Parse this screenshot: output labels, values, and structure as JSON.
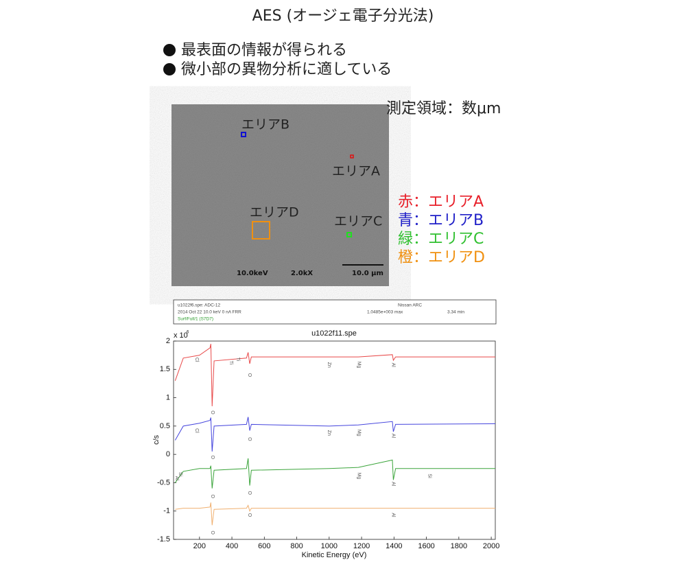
{
  "title": "AES (オージェ電子分光法)",
  "bullets": [
    "最表面の情報が得られる",
    "微小部の異物分析に適している"
  ],
  "sem_image": {
    "areas": [
      "エリアB",
      "エリアA",
      "エリアD",
      "エリアC"
    ],
    "footer": [
      "10.0keV",
      "2.0kX",
      "10.0 μm"
    ]
  },
  "measure_note": "測定領域：数μm",
  "area_legend": [
    {
      "text": "赤：エリアA",
      "color": "#e8202a"
    },
    {
      "text": "青：エリアB",
      "color": "#2020c8"
    },
    {
      "text": "緑：エリアC",
      "color": "#30c030"
    },
    {
      "text": "橙：エリアD",
      "color": "#f09010"
    }
  ],
  "info_box": {
    "file": "u1022f6.spe: ADC-12",
    "org": "Nissan ARC",
    "conditions": "2014 Oct 22  10.0 keV  0 nA  FRR",
    "max": "1.0485e+003 max",
    "time": "3.34 min",
    "region": "Surf/Full/1 (S7D7)"
  },
  "chart_data": {
    "type": "line",
    "title": "u1022f11.spe",
    "x_label": "Kinetic Energy (eV)",
    "y_label": "c/s",
    "y_multiplier": {
      "base": "x 10",
      "exponent": "6"
    },
    "x": [
      50,
      100,
      200,
      265,
      270,
      278,
      290,
      490,
      500,
      510,
      520,
      1000,
      1180,
      1390,
      1396,
      1410,
      2025
    ],
    "series": [
      {
        "name": "エリアA",
        "color": "#e84848",
        "values": [
          1.3,
          1.7,
          1.75,
          1.88,
          1.95,
          0.85,
          1.65,
          1.7,
          1.8,
          1.6,
          1.72,
          1.72,
          1.72,
          1.76,
          1.66,
          1.72,
          1.72
        ]
      },
      {
        "name": "エリアB",
        "color": "#4444dd",
        "values": [
          0.25,
          0.5,
          0.55,
          0.6,
          0.65,
          0.05,
          0.5,
          0.53,
          0.66,
          0.42,
          0.53,
          0.5,
          0.52,
          0.58,
          0.4,
          0.53,
          0.54
        ]
      },
      {
        "name": "エリアC",
        "color": "#3aa43a",
        "values": [
          -0.5,
          -0.3,
          -0.25,
          -0.25,
          -0.2,
          -0.6,
          -0.28,
          -0.25,
          -0.07,
          -0.55,
          -0.28,
          -0.25,
          -0.23,
          -0.1,
          -0.45,
          -0.25,
          -0.25
        ]
      },
      {
        "name": "エリアD",
        "color": "#f0b070",
        "values": [
          -0.97,
          -0.95,
          -0.95,
          -0.93,
          -0.85,
          -1.25,
          -0.97,
          -0.95,
          -0.9,
          -1.0,
          -0.95,
          -0.95,
          -0.95,
          -0.95,
          -0.95,
          -0.95,
          -0.95
        ]
      }
    ],
    "annotations": [
      {
        "text": "Cl",
        "x": 183,
        "y": 1.67
      },
      {
        "text": "Ti",
        "x": 395,
        "y": 1.62
      },
      {
        "text": "Ti",
        "x": 437,
        "y": 1.68
      },
      {
        "text": "O",
        "x": 280,
        "y": 0.74
      },
      {
        "text": "O",
        "x": 510,
        "y": 1.4
      },
      {
        "text": "Zn",
        "x": 1000,
        "y": 1.58
      },
      {
        "text": "Mg",
        "x": 1185,
        "y": 1.58
      },
      {
        "text": "Al",
        "x": 1395,
        "y": 1.58
      },
      {
        "text": "Cl",
        "x": 183,
        "y": 0.42
      },
      {
        "text": "O",
        "x": 280,
        "y": -0.05
      },
      {
        "text": "O",
        "x": 510,
        "y": 0.27
      },
      {
        "text": "Zn",
        "x": 1000,
        "y": 0.38
      },
      {
        "text": "Mg",
        "x": 1185,
        "y": 0.38
      },
      {
        "text": "Al",
        "x": 1395,
        "y": 0.33
      },
      {
        "text": "Al",
        "x": 60,
        "y": -0.42
      },
      {
        "text": "Si",
        "x": 82,
        "y": -0.35
      },
      {
        "text": "O",
        "x": 280,
        "y": -0.74
      },
      {
        "text": "O",
        "x": 510,
        "y": -0.68
      },
      {
        "text": "Mg",
        "x": 1185,
        "y": -0.38
      },
      {
        "text": "Al",
        "x": 1395,
        "y": -0.52
      },
      {
        "text": "Si",
        "x": 1620,
        "y": -0.38
      },
      {
        "text": "O",
        "x": 280,
        "y": -1.38
      },
      {
        "text": "O",
        "x": 510,
        "y": -1.07
      },
      {
        "text": "Al",
        "x": 1395,
        "y": -1.07
      }
    ],
    "xlim": [
      40,
      2025
    ],
    "ylim": [
      -1.5,
      2
    ],
    "xticks": [
      200,
      400,
      600,
      800,
      1000,
      1200,
      1400,
      1600,
      1800,
      2000
    ],
    "yticks": [
      -1.5,
      -1,
      -0.5,
      0,
      0.5,
      1,
      1.5,
      2
    ]
  }
}
